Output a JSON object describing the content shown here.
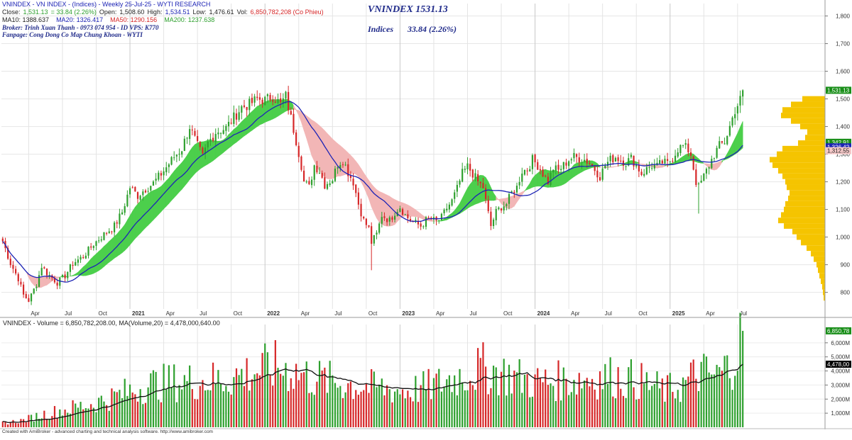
{
  "header": {
    "line1": "VNINDEX - VN INDEX - (Indices) - Weekly 25-Jul-25 - WYTI RESEARCH",
    "close_label": "Close:",
    "close_value": "1,531.13",
    "change_text": "= 33.84 (2.26%)",
    "open_label": "Open:",
    "open_value": "1,508.60",
    "high_label": "High:",
    "high_value": "1,534.51",
    "low_label": "Low:",
    "low_value": "1,476.61",
    "vol_label": "Vol:",
    "vol_value": "6,850,782,208 (Co Phieu)",
    "ma10": "MA10:  1388.637",
    "ma20": "MA20:  1326.417",
    "ma50": "MA50:  1290.156",
    "ma200": "MA200:  1237.638",
    "broker": "Broker: Trinh Xuan Thanh - 0973 074 954 - ID VPS: K770",
    "fanpage": "Fanpage: Cong Dong Co Map Chung Khoan - WYTI",
    "big_title": "VNINDEX 1531.13",
    "indices_label": "Indices",
    "indices_change": "33.84 (2.26%)"
  },
  "volume_title": "VNINDEX - Volume = 6,850,782,208.00,  MA(Volume,20) = 4,478,000,640.00",
  "footer": "Created with AmiBroker - advanced charting and technical analysis software. http://www.amibroker.com",
  "colors": {
    "up": "#2ea02e",
    "down": "#d62728",
    "ma_blue": "#1d24b5",
    "ma_green": "#4ccf4c",
    "ma_pink": "#f2b6b6",
    "profile": "#f5c400",
    "vol_ma": "#111111"
  },
  "chart_data": {
    "type": "candlestick",
    "price_axis": {
      "ticks": [
        "800",
        "900",
        "1,000",
        "1,100",
        "1,200",
        "1,300",
        "1,400",
        "1,500",
        "1,600",
        "1,700",
        "1,800"
      ],
      "range": [
        740,
        1845
      ]
    },
    "volume_axis": {
      "ticks": [
        "1,000M",
        "2,000M",
        "3,000M",
        "4,000M",
        "5,000M",
        "6,000M"
      ],
      "range": [
        0,
        7300
      ]
    },
    "time_axis": {
      "labels": [
        {
          "label": "Apr",
          "year": false,
          "week": 10
        },
        {
          "label": "Jul",
          "year": false,
          "week": 23
        },
        {
          "label": "Oct",
          "year": false,
          "week": 36
        },
        {
          "label": "2021",
          "year": true,
          "week": 49
        },
        {
          "label": "Apr",
          "year": false,
          "week": 62
        },
        {
          "label": "Jul",
          "year": false,
          "week": 75
        },
        {
          "label": "Oct",
          "year": false,
          "week": 88
        },
        {
          "label": "2022",
          "year": true,
          "week": 101
        },
        {
          "label": "Apr",
          "year": false,
          "week": 114
        },
        {
          "label": "Jul",
          "year": false,
          "week": 127
        },
        {
          "label": "Oct",
          "year": false,
          "week": 140
        },
        {
          "label": "2023",
          "year": true,
          "week": 153
        },
        {
          "label": "Apr",
          "year": false,
          "week": 166
        },
        {
          "label": "Jul",
          "year": false,
          "week": 179
        },
        {
          "label": "Oct",
          "year": false,
          "week": 192
        },
        {
          "label": "2024",
          "year": true,
          "week": 205
        },
        {
          "label": "Apr",
          "year": false,
          "week": 218
        },
        {
          "label": "Jul",
          "year": false,
          "week": 231
        },
        {
          "label": "Oct",
          "year": false,
          "week": 244
        },
        {
          "label": "2025",
          "year": true,
          "week": 257
        },
        {
          "label": "Apr",
          "year": false,
          "week": 270
        },
        {
          "label": "Jul",
          "year": false,
          "week": 283
        }
      ]
    },
    "price_anchors": [
      [
        0,
        985
      ],
      [
        3,
        905
      ],
      [
        6,
        850
      ],
      [
        8,
        790
      ],
      [
        10,
        770
      ],
      [
        13,
        830
      ],
      [
        15,
        895
      ],
      [
        17,
        870
      ],
      [
        21,
        835
      ],
      [
        24,
        860
      ],
      [
        27,
        905
      ],
      [
        31,
        930
      ],
      [
        35,
        975
      ],
      [
        39,
        1010
      ],
      [
        43,
        1040
      ],
      [
        46,
        1090
      ],
      [
        49,
        1180
      ],
      [
        52,
        1150
      ],
      [
        55,
        1175
      ],
      [
        58,
        1195
      ],
      [
        62,
        1240
      ],
      [
        66,
        1290
      ],
      [
        69,
        1320
      ],
      [
        72,
        1400
      ],
      [
        75,
        1330
      ],
      [
        77,
        1290
      ],
      [
        79,
        1340
      ],
      [
        82,
        1380
      ],
      [
        86,
        1395
      ],
      [
        88,
        1420
      ],
      [
        92,
        1470
      ],
      [
        95,
        1480
      ],
      [
        98,
        1500
      ],
      [
        101,
        1495
      ],
      [
        104,
        1510
      ],
      [
        107,
        1480
      ],
      [
        109,
        1510
      ],
      [
        111,
        1430
      ],
      [
        113,
        1350
      ],
      [
        115,
        1260
      ],
      [
        116,
        1200
      ],
      [
        118,
        1180
      ],
      [
        120,
        1260
      ],
      [
        122,
        1240
      ],
      [
        124,
        1190
      ],
      [
        127,
        1210
      ],
      [
        129,
        1265
      ],
      [
        131,
        1280
      ],
      [
        133,
        1235
      ],
      [
        135,
        1200
      ],
      [
        137,
        1120
      ],
      [
        139,
        1060
      ],
      [
        141,
        1030
      ],
      [
        142,
        980
      ],
      [
        144,
        1010
      ],
      [
        146,
        1080
      ],
      [
        149,
        1060
      ],
      [
        151,
        1090
      ],
      [
        153,
        1110
      ],
      [
        155,
        1080
      ],
      [
        157,
        1060
      ],
      [
        159,
        1050
      ],
      [
        161,
        1040
      ],
      [
        163,
        1060
      ],
      [
        165,
        1065
      ],
      [
        167,
        1055
      ],
      [
        169,
        1070
      ],
      [
        171,
        1105
      ],
      [
        173,
        1130
      ],
      [
        175,
        1175
      ],
      [
        177,
        1230
      ],
      [
        179,
        1255
      ],
      [
        181,
        1230
      ],
      [
        183,
        1200
      ],
      [
        185,
        1180
      ],
      [
        186,
        1130
      ],
      [
        188,
        1040
      ],
      [
        190,
        1090
      ],
      [
        192,
        1110
      ],
      [
        194,
        1120
      ],
      [
        196,
        1160
      ],
      [
        198,
        1180
      ],
      [
        200,
        1240
      ],
      [
        202,
        1245
      ],
      [
        204,
        1280
      ],
      [
        206,
        1260
      ],
      [
        208,
        1230
      ],
      [
        210,
        1200
      ],
      [
        212,
        1250
      ],
      [
        214,
        1240
      ],
      [
        216,
        1260
      ],
      [
        218,
        1280
      ],
      [
        220,
        1290
      ],
      [
        222,
        1285
      ],
      [
        224,
        1280
      ],
      [
        226,
        1270
      ],
      [
        228,
        1245
      ],
      [
        230,
        1220
      ],
      [
        232,
        1260
      ],
      [
        234,
        1280
      ],
      [
        236,
        1290
      ],
      [
        238,
        1280
      ],
      [
        240,
        1270
      ],
      [
        242,
        1285
      ],
      [
        244,
        1260
      ],
      [
        246,
        1230
      ],
      [
        248,
        1245
      ],
      [
        250,
        1260
      ],
      [
        252,
        1255
      ],
      [
        254,
        1270
      ],
      [
        256,
        1265
      ],
      [
        258,
        1290
      ],
      [
        260,
        1320
      ],
      [
        262,
        1330
      ],
      [
        264,
        1315
      ],
      [
        265,
        1300
      ],
      [
        267,
        1200
      ],
      [
        268,
        1180
      ],
      [
        270,
        1220
      ],
      [
        272,
        1260
      ],
      [
        274,
        1300
      ],
      [
        276,
        1330
      ],
      [
        278,
        1345
      ],
      [
        280,
        1400
      ],
      [
        282,
        1460
      ],
      [
        284,
        1497
      ],
      [
        285,
        1531
      ]
    ],
    "moving_averages": [
      {
        "name": "MA10",
        "period": 10,
        "value": 1388.637
      },
      {
        "name": "MA20",
        "period": 20,
        "value": 1326.417
      },
      {
        "name": "MA50",
        "period": 50,
        "value": 1290.156
      },
      {
        "name": "MA200",
        "period": 200,
        "value": 1237.638
      }
    ],
    "last_close": 1531.13,
    "price_tags": [
      {
        "label": "1,531.13",
        "price": 1531.13,
        "bg": "#1a8f1a",
        "fg": "#ffffff"
      },
      {
        "label": "1,342.91",
        "price": 1342.91,
        "bg": "#1a8f1a",
        "fg": "#ffffff"
      },
      {
        "label": "1,326.42",
        "price": 1326.42,
        "bg": "#1d24b5",
        "fg": "#ffffff"
      },
      {
        "label": "1,312.55",
        "price": 1312.55,
        "bg": "#f4c8c8",
        "fg": "#222222"
      }
    ],
    "volume_tags": [
      {
        "label": "6,850,78",
        "value": 6850.78,
        "bg": "#1a8f1a",
        "fg": "#ffffff"
      },
      {
        "label": "4,478,00",
        "value": 4478.0,
        "bg": "#000000",
        "fg": "#ffffff"
      }
    ],
    "volume_anchors": [
      [
        0,
        300
      ],
      [
        8,
        500
      ],
      [
        15,
        900
      ],
      [
        25,
        1300
      ],
      [
        35,
        1700
      ],
      [
        45,
        2300
      ],
      [
        55,
        3000
      ],
      [
        65,
        3200
      ],
      [
        75,
        3300
      ],
      [
        85,
        3400
      ],
      [
        95,
        3900
      ],
      [
        105,
        4300
      ],
      [
        110,
        4100
      ],
      [
        118,
        3600
      ],
      [
        126,
        3300
      ],
      [
        135,
        3000
      ],
      [
        145,
        2800
      ],
      [
        155,
        2600
      ],
      [
        165,
        2900
      ],
      [
        175,
        3600
      ],
      [
        185,
        4200
      ],
      [
        195,
        3700
      ],
      [
        205,
        3200
      ],
      [
        215,
        3300
      ],
      [
        225,
        3500
      ],
      [
        235,
        3600
      ],
      [
        245,
        3300
      ],
      [
        255,
        2600
      ],
      [
        262,
        3000
      ],
      [
        268,
        3900
      ],
      [
        275,
        3600
      ],
      [
        280,
        4400
      ],
      [
        284,
        6100
      ],
      [
        285,
        6850
      ]
    ],
    "volume_profile": [
      [
        1500,
        32
      ],
      [
        1480,
        48
      ],
      [
        1460,
        60
      ],
      [
        1440,
        62
      ],
      [
        1420,
        48
      ],
      [
        1400,
        35
      ],
      [
        1380,
        25
      ],
      [
        1360,
        28
      ],
      [
        1340,
        38
      ],
      [
        1320,
        60
      ],
      [
        1300,
        68
      ],
      [
        1280,
        78
      ],
      [
        1260,
        74
      ],
      [
        1240,
        66
      ],
      [
        1220,
        60
      ],
      [
        1200,
        56
      ],
      [
        1180,
        54
      ],
      [
        1160,
        50
      ],
      [
        1140,
        52
      ],
      [
        1120,
        56
      ],
      [
        1100,
        58
      ],
      [
        1080,
        62
      ],
      [
        1060,
        66
      ],
      [
        1040,
        58
      ],
      [
        1020,
        46
      ],
      [
        1000,
        40
      ],
      [
        980,
        34
      ],
      [
        960,
        26
      ],
      [
        940,
        20
      ],
      [
        920,
        16
      ],
      [
        900,
        12
      ],
      [
        880,
        10
      ],
      [
        860,
        8
      ],
      [
        840,
        6
      ],
      [
        820,
        4
      ],
      [
        800,
        3
      ],
      [
        780,
        2
      ]
    ]
  }
}
